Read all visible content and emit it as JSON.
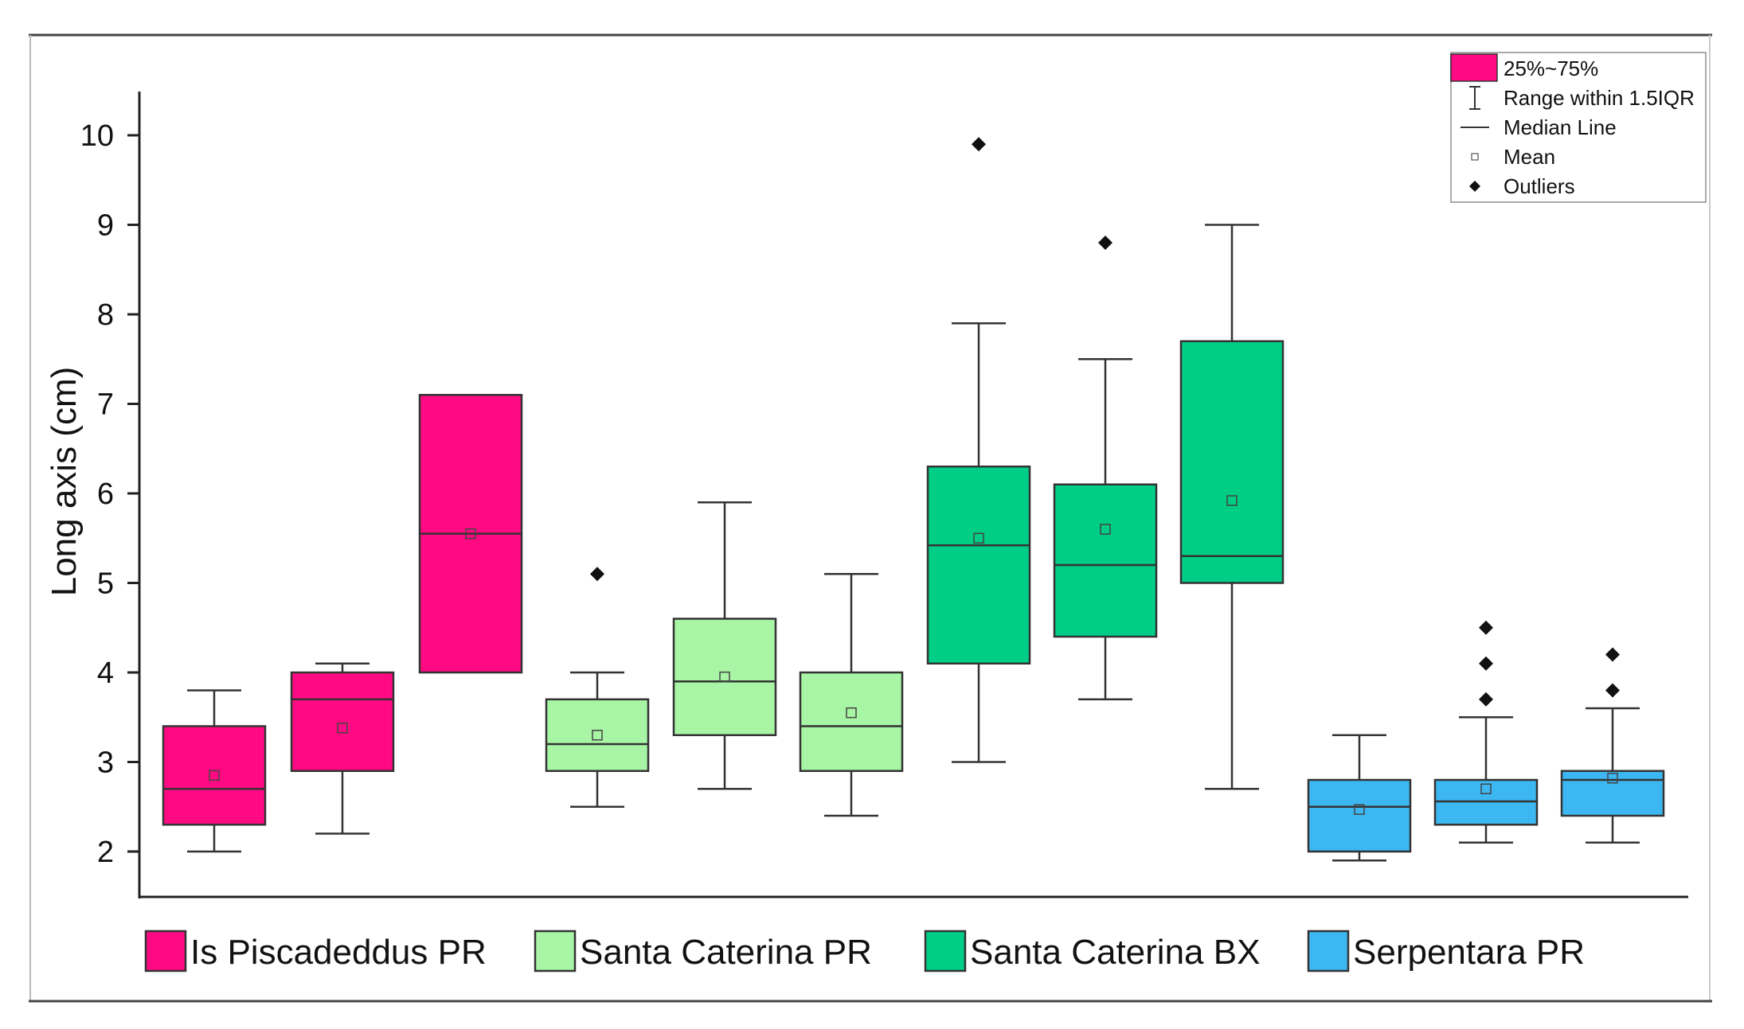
{
  "chart_data": {
    "type": "box",
    "title": "",
    "xlabel": "",
    "ylabel": "Long axis (cm)",
    "ylim": [
      1.5,
      10.5
    ],
    "yticks": [
      2,
      3,
      4,
      5,
      6,
      7,
      8,
      9,
      10
    ],
    "grid": false,
    "legend_stats": {
      "position": "top-right",
      "items": [
        {
          "symbol": "box",
          "label": "25%~75%"
        },
        {
          "symbol": "whisker",
          "label": "Range within 1.5IQR"
        },
        {
          "symbol": "median",
          "label": "Median Line"
        },
        {
          "symbol": "mean",
          "label": "Mean"
        },
        {
          "symbol": "outlier",
          "label": "Outliers"
        }
      ]
    },
    "groups": [
      {
        "name": "Is Piscadeddus PR",
        "color": "#ff0a82"
      },
      {
        "name": "Santa Caterina PR",
        "color": "#a8f5a5"
      },
      {
        "name": "Santa Caterina BX",
        "color": "#00cd86"
      },
      {
        "name": "Serpentara PR",
        "color": "#3db7f2"
      }
    ],
    "boxes": [
      {
        "group": 0,
        "q1": 2.3,
        "median": 2.7,
        "q3": 3.4,
        "mean": 2.85,
        "whisker_low": 2.0,
        "whisker_high": 3.8,
        "outliers": []
      },
      {
        "group": 0,
        "q1": 2.9,
        "median": 3.7,
        "q3": 4.0,
        "mean": 3.38,
        "whisker_low": 2.2,
        "whisker_high": 4.1,
        "outliers": []
      },
      {
        "group": 0,
        "q1": 4.0,
        "median": 5.55,
        "q3": 7.1,
        "mean": 5.55,
        "whisker_low": null,
        "whisker_high": null,
        "outliers": []
      },
      {
        "group": 1,
        "q1": 2.9,
        "median": 3.2,
        "q3": 3.7,
        "mean": 3.3,
        "whisker_low": 2.5,
        "whisker_high": 4.0,
        "outliers": [
          5.1
        ]
      },
      {
        "group": 1,
        "q1": 3.3,
        "median": 3.9,
        "q3": 4.6,
        "mean": 3.95,
        "whisker_low": 2.7,
        "whisker_high": 5.9,
        "outliers": []
      },
      {
        "group": 1,
        "q1": 2.9,
        "median": 3.4,
        "q3": 4.0,
        "mean": 3.55,
        "whisker_low": 2.4,
        "whisker_high": 5.1,
        "outliers": []
      },
      {
        "group": 2,
        "q1": 4.1,
        "median": 5.42,
        "q3": 6.3,
        "mean": 5.5,
        "whisker_low": 3.0,
        "whisker_high": 7.9,
        "outliers": [
          9.9
        ]
      },
      {
        "group": 2,
        "q1": 4.4,
        "median": 5.2,
        "q3": 6.1,
        "mean": 5.6,
        "whisker_low": 3.7,
        "whisker_high": 7.5,
        "outliers": [
          8.8
        ]
      },
      {
        "group": 2,
        "q1": 5.0,
        "median": 5.3,
        "q3": 7.7,
        "mean": 5.92,
        "whisker_low": 2.7,
        "whisker_high": 9.0,
        "outliers": []
      },
      {
        "group": 3,
        "q1": 2.0,
        "median": 2.5,
        "q3": 2.8,
        "mean": 2.47,
        "whisker_low": 1.9,
        "whisker_high": 3.3,
        "outliers": []
      },
      {
        "group": 3,
        "q1": 2.3,
        "median": 2.56,
        "q3": 2.8,
        "mean": 2.7,
        "whisker_low": 2.1,
        "whisker_high": 3.5,
        "outliers": [
          3.7,
          4.1,
          4.5
        ]
      },
      {
        "group": 3,
        "q1": 2.4,
        "median": 2.8,
        "q3": 2.9,
        "mean": 2.82,
        "whisker_low": 2.1,
        "whisker_high": 3.6,
        "outliers": [
          3.8,
          4.2
        ]
      }
    ]
  }
}
